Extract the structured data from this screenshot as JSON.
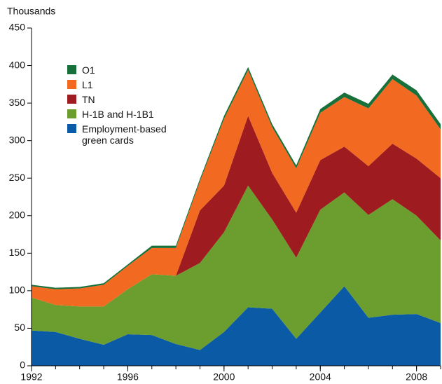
{
  "chart_data": {
    "type": "stacked-area",
    "y_label": "Thousands",
    "x": [
      1992,
      1993,
      1994,
      1995,
      1996,
      1997,
      1998,
      1999,
      2000,
      2001,
      2002,
      2003,
      2004,
      2005,
      2006,
      2007,
      2008,
      2009
    ],
    "xlim": [
      1992,
      2009
    ],
    "xticks": [
      1992,
      1996,
      2000,
      2004,
      2008
    ],
    "ylim": [
      0,
      450
    ],
    "yticks": [
      0,
      50,
      100,
      150,
      200,
      250,
      300,
      350,
      400,
      450
    ],
    "series": [
      {
        "name": "Employment-based green cards",
        "color": "#0b5aa6",
        "values": [
          47,
          45,
          36,
          28,
          42,
          41,
          29,
          21,
          45,
          78,
          76,
          36,
          71,
          106,
          64,
          68,
          69,
          57
        ]
      },
      {
        "name": "H-1B and H-1B1",
        "color": "#6b9d2f",
        "values": [
          44,
          36,
          43,
          51,
          60,
          81,
          91,
          116,
          133,
          162,
          119,
          108,
          137,
          125,
          137,
          154,
          131,
          110
        ]
      },
      {
        "name": "TN",
        "color": "#9e1c1f",
        "values": [
          0,
          0,
          0,
          0,
          0,
          0,
          0,
          70,
          62,
          93,
          62,
          60,
          66,
          61,
          65,
          74,
          76,
          83
        ]
      },
      {
        "name": "L1",
        "color": "#f26a21",
        "values": [
          15,
          21,
          24,
          29,
          31,
          35,
          37,
          39,
          89,
          61,
          61,
          59,
          63,
          66,
          77,
          86,
          84,
          65
        ]
      },
      {
        "name": "O1",
        "color": "#17703a",
        "values": [
          2,
          2,
          2,
          2,
          2,
          3,
          3,
          3,
          4,
          4,
          4,
          4,
          5,
          6,
          6,
          6,
          7,
          7
        ]
      }
    ]
  }
}
